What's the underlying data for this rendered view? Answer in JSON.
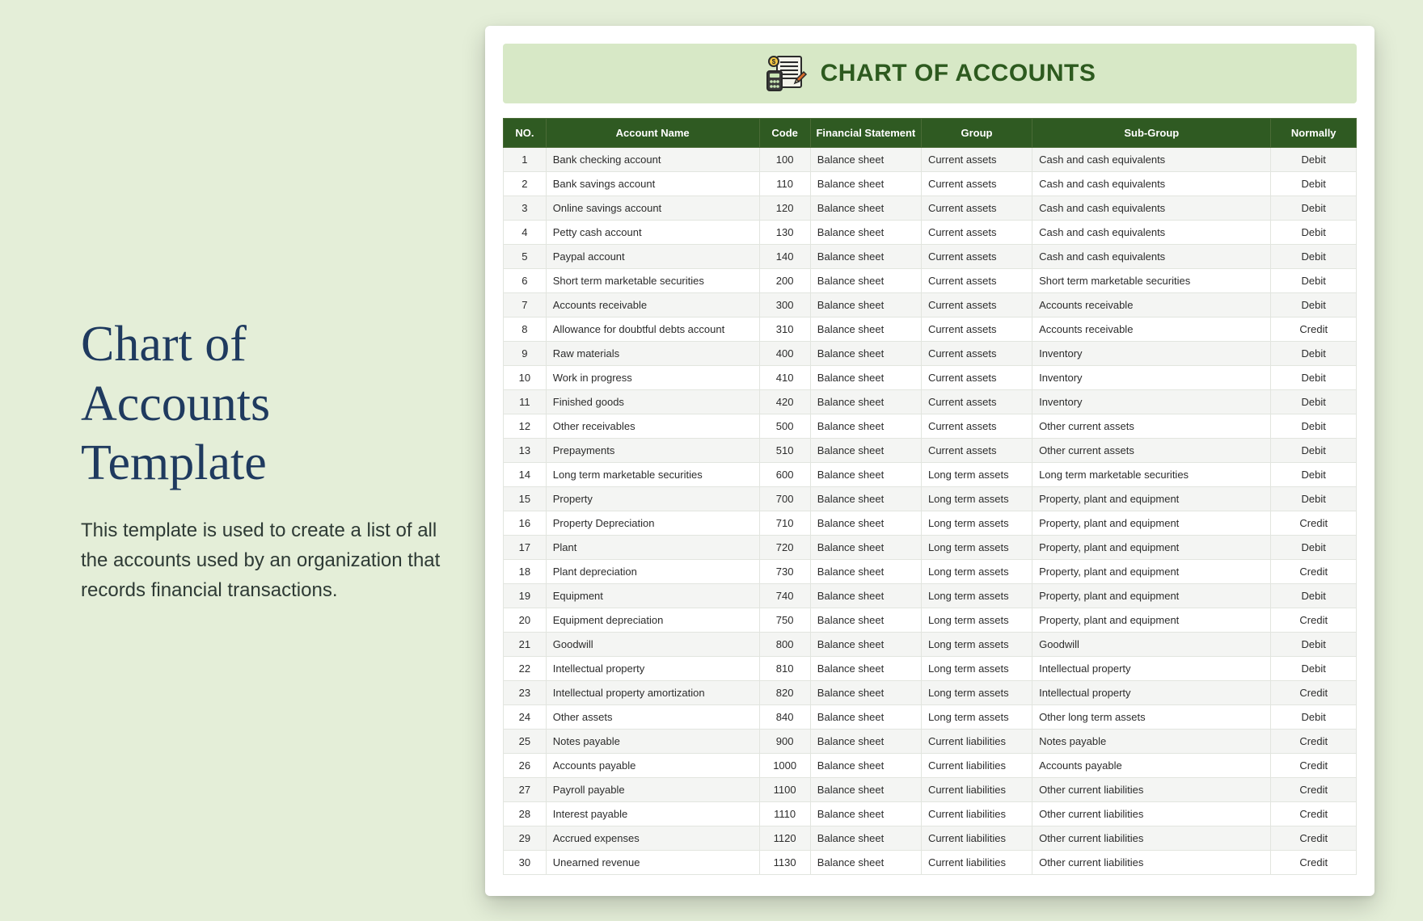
{
  "page": {
    "bg_color": "#e4eed8",
    "title": "Chart of Accounts Template",
    "title_color": "#1f3a5f",
    "title_fontsize": 62,
    "description": "This template is used to create a list of all the accounts used by an organization that records financial transactions.",
    "desc_color": "#2e3a35"
  },
  "card": {
    "banner": {
      "text": "CHART OF ACCOUNTS",
      "bg_color": "#d7e8c6",
      "text_color": "#2d5a1f",
      "fontsize": 30,
      "icon_name": "ledger-calculator-icon"
    },
    "table": {
      "type": "table",
      "header_bg": "#2f5a22",
      "header_text_color": "#ffffff",
      "row_even_bg": "#f4f5f3",
      "row_odd_bg": "#ffffff",
      "border_color": "#e2e5df",
      "columns": [
        {
          "key": "no",
          "label": "NO.",
          "width": "5%",
          "align": "center"
        },
        {
          "key": "name",
          "label": "Account Name",
          "width": "25%",
          "align": "left"
        },
        {
          "key": "code",
          "label": "Code",
          "width": "6%",
          "align": "center"
        },
        {
          "key": "fs",
          "label": "Financial Statement",
          "width": "13%",
          "align": "left"
        },
        {
          "key": "grp",
          "label": "Group",
          "width": "13%",
          "align": "left"
        },
        {
          "key": "sub",
          "label": "Sub-Group",
          "width": "28%",
          "align": "left"
        },
        {
          "key": "norm",
          "label": "Normally",
          "width": "10%",
          "align": "center"
        }
      ],
      "rows": [
        {
          "no": 1,
          "name": "Bank checking account",
          "code": 100,
          "fs": "Balance sheet",
          "grp": "Current assets",
          "sub": "Cash and cash equivalents",
          "norm": "Debit"
        },
        {
          "no": 2,
          "name": "Bank savings account",
          "code": 110,
          "fs": "Balance sheet",
          "grp": "Current assets",
          "sub": "Cash and cash equivalents",
          "norm": "Debit"
        },
        {
          "no": 3,
          "name": "Online savings account",
          "code": 120,
          "fs": "Balance sheet",
          "grp": "Current assets",
          "sub": "Cash and cash equivalents",
          "norm": "Debit"
        },
        {
          "no": 4,
          "name": "Petty cash account",
          "code": 130,
          "fs": "Balance sheet",
          "grp": "Current assets",
          "sub": "Cash and cash equivalents",
          "norm": "Debit"
        },
        {
          "no": 5,
          "name": "Paypal account",
          "code": 140,
          "fs": "Balance sheet",
          "grp": "Current assets",
          "sub": "Cash and cash equivalents",
          "norm": "Debit"
        },
        {
          "no": 6,
          "name": "Short term marketable securities",
          "code": 200,
          "fs": "Balance sheet",
          "grp": "Current assets",
          "sub": "Short term marketable securities",
          "norm": "Debit"
        },
        {
          "no": 7,
          "name": "Accounts receivable",
          "code": 300,
          "fs": "Balance sheet",
          "grp": "Current assets",
          "sub": "Accounts receivable",
          "norm": "Debit"
        },
        {
          "no": 8,
          "name": "Allowance for doubtful debts account",
          "code": 310,
          "fs": "Balance sheet",
          "grp": "Current assets",
          "sub": "Accounts receivable",
          "norm": "Credit"
        },
        {
          "no": 9,
          "name": "Raw materials",
          "code": 400,
          "fs": "Balance sheet",
          "grp": "Current assets",
          "sub": "Inventory",
          "norm": "Debit"
        },
        {
          "no": 10,
          "name": "Work in progress",
          "code": 410,
          "fs": "Balance sheet",
          "grp": "Current assets",
          "sub": "Inventory",
          "norm": "Debit"
        },
        {
          "no": 11,
          "name": "Finished goods",
          "code": 420,
          "fs": "Balance sheet",
          "grp": "Current assets",
          "sub": "Inventory",
          "norm": "Debit"
        },
        {
          "no": 12,
          "name": "Other receivables",
          "code": 500,
          "fs": "Balance sheet",
          "grp": "Current assets",
          "sub": "Other current assets",
          "norm": "Debit"
        },
        {
          "no": 13,
          "name": "Prepayments",
          "code": 510,
          "fs": "Balance sheet",
          "grp": "Current assets",
          "sub": "Other current assets",
          "norm": "Debit"
        },
        {
          "no": 14,
          "name": "Long term marketable securities",
          "code": 600,
          "fs": "Balance sheet",
          "grp": "Long term assets",
          "sub": "Long term marketable securities",
          "norm": "Debit"
        },
        {
          "no": 15,
          "name": "Property",
          "code": 700,
          "fs": "Balance sheet",
          "grp": "Long term assets",
          "sub": "Property, plant and equipment",
          "norm": "Debit"
        },
        {
          "no": 16,
          "name": "Property Depreciation",
          "code": 710,
          "fs": "Balance sheet",
          "grp": "Long term assets",
          "sub": "Property, plant and equipment",
          "norm": "Credit"
        },
        {
          "no": 17,
          "name": "Plant",
          "code": 720,
          "fs": "Balance sheet",
          "grp": "Long term assets",
          "sub": "Property, plant and equipment",
          "norm": "Debit"
        },
        {
          "no": 18,
          "name": "Plant depreciation",
          "code": 730,
          "fs": "Balance sheet",
          "grp": "Long term assets",
          "sub": "Property, plant and equipment",
          "norm": "Credit"
        },
        {
          "no": 19,
          "name": "Equipment",
          "code": 740,
          "fs": "Balance sheet",
          "grp": "Long term assets",
          "sub": "Property, plant and equipment",
          "norm": "Debit"
        },
        {
          "no": 20,
          "name": "Equipment depreciation",
          "code": 750,
          "fs": "Balance sheet",
          "grp": "Long term assets",
          "sub": "Property, plant and equipment",
          "norm": "Credit"
        },
        {
          "no": 21,
          "name": "Goodwill",
          "code": 800,
          "fs": "Balance sheet",
          "grp": "Long term assets",
          "sub": "Goodwill",
          "norm": "Debit"
        },
        {
          "no": 22,
          "name": "Intellectual property",
          "code": 810,
          "fs": "Balance sheet",
          "grp": "Long term assets",
          "sub": "Intellectual property",
          "norm": "Debit"
        },
        {
          "no": 23,
          "name": "Intellectual property amortization",
          "code": 820,
          "fs": "Balance sheet",
          "grp": "Long term assets",
          "sub": "Intellectual property",
          "norm": "Credit"
        },
        {
          "no": 24,
          "name": "Other assets",
          "code": 840,
          "fs": "Balance sheet",
          "grp": "Long term assets",
          "sub": "Other long term assets",
          "norm": "Debit"
        },
        {
          "no": 25,
          "name": "Notes payable",
          "code": 900,
          "fs": "Balance sheet",
          "grp": "Current liabilities",
          "sub": "Notes payable",
          "norm": "Credit"
        },
        {
          "no": 26,
          "name": "Accounts payable",
          "code": 1000,
          "fs": "Balance sheet",
          "grp": "Current liabilities",
          "sub": "Accounts payable",
          "norm": "Credit"
        },
        {
          "no": 27,
          "name": "Payroll payable",
          "code": 1100,
          "fs": "Balance sheet",
          "grp": "Current liabilities",
          "sub": "Other current liabilities",
          "norm": "Credit"
        },
        {
          "no": 28,
          "name": "Interest payable",
          "code": 1110,
          "fs": "Balance sheet",
          "grp": "Current liabilities",
          "sub": "Other current liabilities",
          "norm": "Credit"
        },
        {
          "no": 29,
          "name": "Accrued expenses",
          "code": 1120,
          "fs": "Balance sheet",
          "grp": "Current liabilities",
          "sub": "Other current liabilities",
          "norm": "Credit"
        },
        {
          "no": 30,
          "name": "Unearned revenue",
          "code": 1130,
          "fs": "Balance sheet",
          "grp": "Current liabilities",
          "sub": "Other current liabilities",
          "norm": "Credit"
        }
      ]
    }
  }
}
